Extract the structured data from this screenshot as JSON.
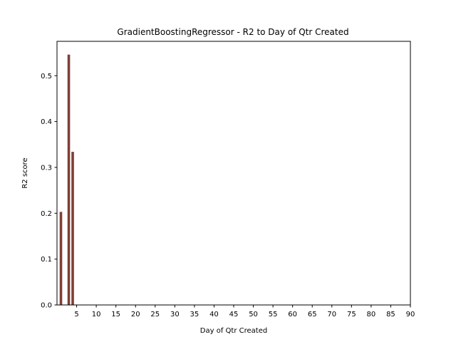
{
  "chart_data": {
    "type": "bar",
    "title": "GradientBoostingRegressor - R2 to Day of Qtr Created",
    "xlabel": "Day of Qtr Created",
    "ylabel": "R2 score",
    "x": [
      1,
      3,
      4
    ],
    "values": [
      0.203,
      0.546,
      0.334
    ],
    "xlim": [
      0,
      90
    ],
    "ylim": [
      0,
      0.575
    ],
    "xticks": [
      5,
      10,
      15,
      20,
      25,
      30,
      35,
      40,
      45,
      50,
      55,
      60,
      65,
      70,
      75,
      80,
      85,
      90
    ],
    "xtick_labels": [
      "5",
      "10",
      "15",
      "20",
      "25",
      "30",
      "35",
      "40",
      "45",
      "50",
      "55",
      "60",
      "65",
      "70",
      "75",
      "80",
      "85",
      "90"
    ],
    "yticks": [
      0.0,
      0.1,
      0.2,
      0.3,
      0.4,
      0.5
    ],
    "ytick_labels": [
      "0.0",
      "0.1",
      "0.2",
      "0.3",
      "0.4",
      "0.5"
    ],
    "bar_color": "#7f3f35",
    "grid": false,
    "legend": false
  }
}
